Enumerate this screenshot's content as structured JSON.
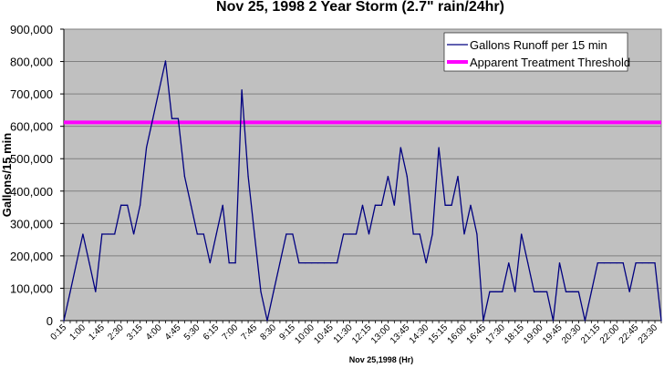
{
  "chart_data": {
    "type": "line",
    "title": "Nov 25, 1998 2 Year Storm (2.7\" rain/24hr)",
    "xlabel": "Nov 25,1998 (Hr)",
    "ylabel": "Gallons/15 min",
    "ylim": [
      0,
      900000
    ],
    "y_ticks": [
      0,
      100000,
      200000,
      300000,
      400000,
      500000,
      600000,
      700000,
      800000,
      900000
    ],
    "y_tick_labels": [
      "0",
      "100,000",
      "200,000",
      "300,000",
      "400,000",
      "500,000",
      "600,000",
      "700,000",
      "800,000",
      "900,000"
    ],
    "x_tick_labels": [
      "0:15",
      "1:00",
      "1:45",
      "2:30",
      "3:15",
      "4:00",
      "4:45",
      "5:30",
      "6:15",
      "7:00",
      "7:45",
      "8:30",
      "9:15",
      "10:00",
      "10:45",
      "11:30",
      "12:15",
      "13:00",
      "13:45",
      "14:30",
      "15:15",
      "16:00",
      "16:45",
      "17:30",
      "18:15",
      "19:00",
      "19:45",
      "20:30",
      "21:15",
      "22:00",
      "22:45",
      "23:30"
    ],
    "x_tick_every": 3,
    "grid": true,
    "legend_position": "top-right",
    "series": [
      {
        "name": "Gallons Runoff per 15 min",
        "color": "#000080",
        "values": [
          0,
          89100,
          178200,
          267300,
          178200,
          89100,
          267300,
          267300,
          267300,
          356400,
          356400,
          267300,
          356400,
          534600,
          623700,
          712800,
          801900,
          623700,
          623700,
          445500,
          356400,
          267300,
          267300,
          178200,
          267300,
          356400,
          178200,
          178200,
          712800,
          445500,
          267300,
          89100,
          0,
          89100,
          178200,
          267300,
          267300,
          178200,
          178200,
          178200,
          178200,
          178200,
          178200,
          178200,
          267300,
          267300,
          267300,
          356400,
          267300,
          356400,
          356400,
          445500,
          356400,
          534600,
          445500,
          267300,
          267300,
          178200,
          267300,
          534600,
          356400,
          356400,
          445500,
          267300,
          356400,
          267300,
          0,
          89100,
          89100,
          89100,
          178200,
          89100,
          267300,
          178200,
          89100,
          89100,
          89100,
          0,
          178200,
          89100,
          89100,
          89100,
          0,
          89100,
          178200,
          178200,
          178200,
          178200,
          178200,
          89100,
          178200,
          178200,
          178200,
          178200,
          0
        ]
      },
      {
        "name": "Apparent Treatment Threshold",
        "color": "#ff00ff",
        "constant": 612000
      }
    ]
  }
}
